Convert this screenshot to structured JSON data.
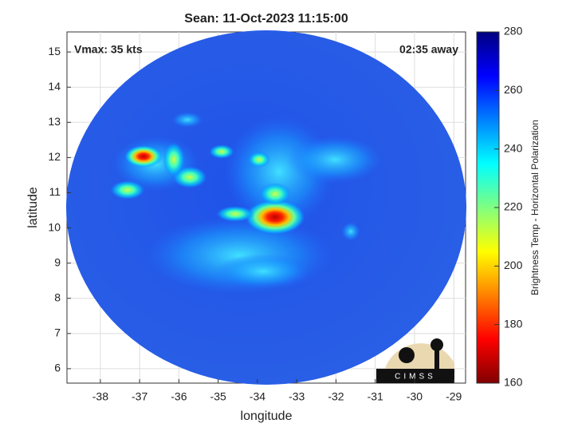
{
  "chart_data": {
    "type": "swath",
    "title": "Sean: 11-Oct-2023 11:15:00",
    "x_label": "longitude",
    "y_label": "latitude",
    "annotations": [
      "Vmax: 35 kts",
      "02:35 away"
    ],
    "xlim": [
      -38.85,
      -28.7
    ],
    "ylim": [
      5.59,
      15.57
    ],
    "xticks": [
      -38,
      -37,
      -36,
      -35,
      -34,
      -33,
      -32,
      -31,
      -30,
      -29
    ],
    "yticks": [
      6,
      7,
      8,
      9,
      10,
      11,
      12,
      13,
      14,
      15
    ],
    "grid": true,
    "colorbar": {
      "label": "Brightness Temp - Horizontal Polarization",
      "lim": [
        160,
        280
      ],
      "ticks": [
        160,
        180,
        200,
        220,
        240,
        260,
        280
      ],
      "colors": [
        "#800000",
        "#ff0000",
        "#ff8000",
        "#ffff00",
        "#80ff80",
        "#00ffff",
        "#0080ff",
        "#0000ff",
        "#000080"
      ]
    },
    "logo": "CIMSS"
  }
}
